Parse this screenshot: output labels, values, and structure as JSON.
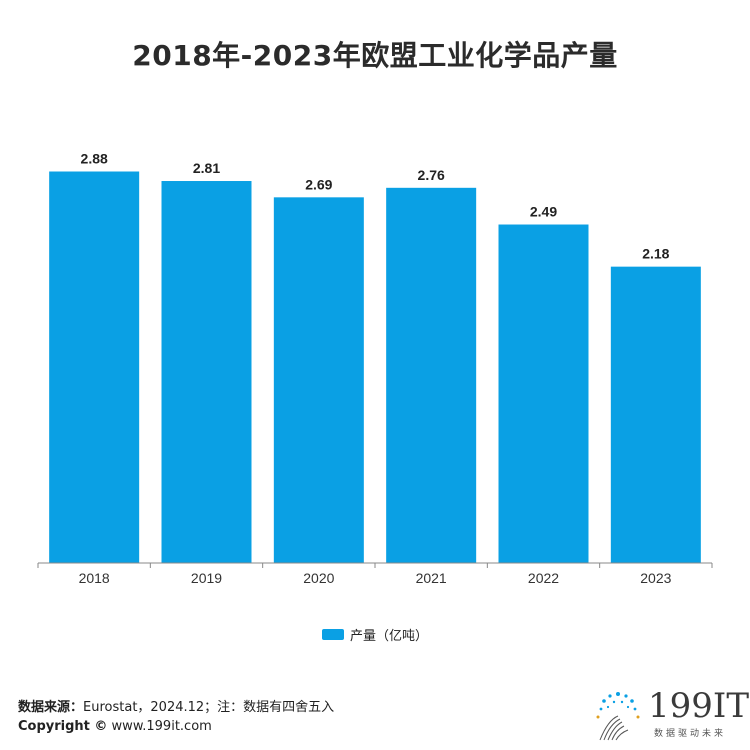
{
  "chart_data": {
    "type": "bar",
    "title": "2018年-2023年欧盟工业化学品产量",
    "categories": [
      "2018",
      "2019",
      "2020",
      "2021",
      "2022",
      "2023"
    ],
    "values": [
      2.88,
      2.81,
      2.69,
      2.76,
      2.49,
      2.18
    ],
    "series": [
      {
        "name": "产量（亿吨）",
        "values": [
          2.88,
          2.81,
          2.69,
          2.76,
          2.49,
          2.18
        ]
      }
    ],
    "ylim": [
      0,
      3.2
    ],
    "grid": false,
    "legend": "bottom-center",
    "colors": {
      "bar": "#0aa0e4"
    }
  },
  "footer": {
    "source_label": "数据来源：",
    "source_text": "Eurostat，2024.12；注：数据有四舍五入",
    "copyright_label": "Copyright ©",
    "copyright_text": " www.199it.com"
  },
  "logo": {
    "text": "199IT",
    "tagline": "数据驱动未来",
    "icon": "dandelion-dots-icon"
  }
}
